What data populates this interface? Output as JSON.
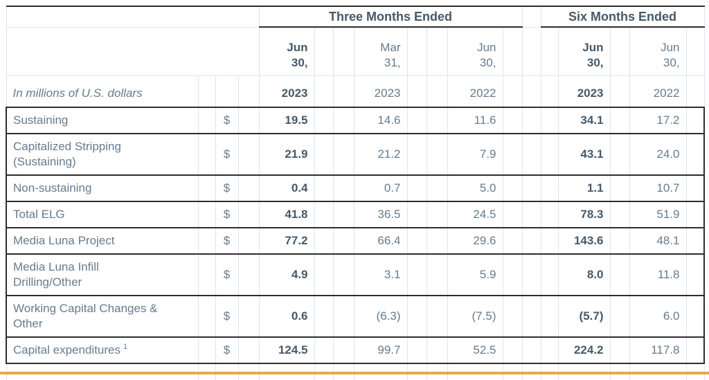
{
  "table": {
    "unit_label": "In millions of U.S. dollars",
    "currency_symbol": "$",
    "groups": [
      {
        "label": "Three Months Ended"
      },
      {
        "label": "Six Months Ended"
      }
    ],
    "columns": [
      {
        "date": "Jun\n30,",
        "year": "2023",
        "bold": true
      },
      {
        "date": "Mar\n31,",
        "year": "2023",
        "bold": false
      },
      {
        "date": "Jun\n30,",
        "year": "2022",
        "bold": false
      },
      {
        "date": "Jun\n30,",
        "year": "2023",
        "bold": true
      },
      {
        "date": "Jun\n30,",
        "year": "2022",
        "bold": false
      }
    ],
    "rows": [
      {
        "label": "Sustaining",
        "values": [
          "19.5",
          "14.6",
          "11.6",
          "34.1",
          "17.2"
        ]
      },
      {
        "label": "Capitalized Stripping\n(Sustaining)",
        "values": [
          "21.9",
          "21.2",
          "7.9",
          "43.1",
          "24.0"
        ]
      },
      {
        "label": "Non-sustaining",
        "values": [
          "0.4",
          "0.7",
          "5.0",
          "1.1",
          "10.7"
        ]
      },
      {
        "label": "Total ELG",
        "values": [
          "41.8",
          "36.5",
          "24.5",
          "78.3",
          "51.9"
        ]
      },
      {
        "label": "Media Luna Project",
        "values": [
          "77.2",
          "66.4",
          "29.6",
          "143.6",
          "48.1"
        ]
      },
      {
        "label": "Media Luna Infill\nDrilling/Other",
        "values": [
          "4.9",
          "3.1",
          "5.9",
          "8.0",
          "11.8"
        ]
      },
      {
        "label": "Working Capital Changes &\nOther",
        "values": [
          "0.6",
          "(6.3)",
          "(7.5)",
          "(5.7)",
          "6.0"
        ]
      },
      {
        "label": "Capital expenditures",
        "footnote": "1",
        "values": [
          "124.5",
          "99.7",
          "52.5",
          "224.2",
          "117.8"
        ]
      }
    ],
    "colors": {
      "text": "#667b8d",
      "text_bold": "#45596b",
      "grid": "#dde4ee",
      "border": "#2d2d2d",
      "accent": "#e9a84b"
    }
  }
}
